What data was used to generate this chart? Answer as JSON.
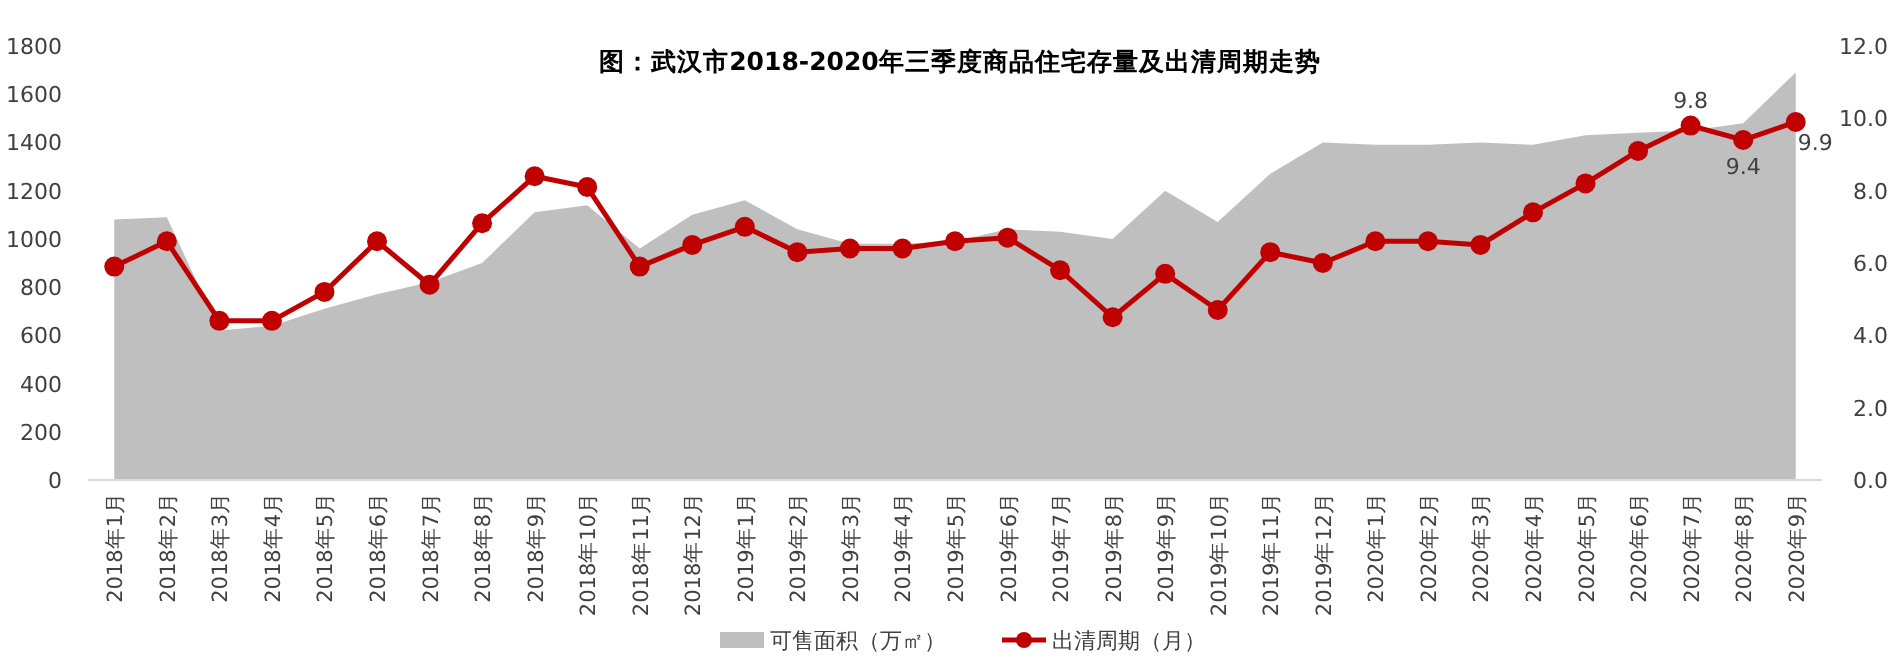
{
  "chart_data": {
    "type": "area",
    "title": "图：武汉市2018-2020年三季度商品住宅存量及出清周期走势",
    "categories": [
      "2018年1月",
      "2018年2月",
      "2018年3月",
      "2018年4月",
      "2018年5月",
      "2018年6月",
      "2018年7月",
      "2018年8月",
      "2018年9月",
      "2018年10月",
      "2018年11月",
      "2018年12月",
      "2019年1月",
      "2019年2月",
      "2019年3月",
      "2019年4月",
      "2019年5月",
      "2019年6月",
      "2019年7月",
      "2019年8月",
      "2019年9月",
      "2019年10月",
      "2019年11月",
      "2019年12月",
      "2020年1月",
      "2020年2月",
      "2020年3月",
      "2020年4月",
      "2020年5月",
      "2020年6月",
      "2020年7月",
      "2020年8月",
      "2020年9月"
    ],
    "series": [
      {
        "name": "可售面积（万㎡）",
        "color": "#bfbfbf",
        "values": [
          1080,
          1090,
          620,
          640,
          710,
          770,
          820,
          900,
          1110,
          1140,
          960,
          1100,
          1160,
          1040,
          980,
          980,
          990,
          1040,
          1030,
          1000,
          1200,
          1070,
          1270,
          1400,
          1390,
          1390,
          1400,
          1390,
          1430,
          1440,
          1450,
          1480,
          1690
        ]
      },
      {
        "name": "出清周期（月）",
        "type": "line",
        "axis": "y2",
        "color": "#c00000",
        "marker": "circle",
        "line_style": "solid",
        "values": [
          5.9,
          6.6,
          4.4,
          4.4,
          5.2,
          6.6,
          5.4,
          7.1,
          8.4,
          8.1,
          5.9,
          6.5,
          7.0,
          6.3,
          6.4,
          6.4,
          6.6,
          6.7,
          5.8,
          4.5,
          5.7,
          4.7,
          6.3,
          6.0,
          6.6,
          6.6,
          6.5,
          7.4,
          8.2,
          9.1,
          9.8,
          9.4,
          9.9
        ],
        "value_labels": [
          null,
          null,
          null,
          null,
          null,
          null,
          null,
          null,
          null,
          null,
          null,
          null,
          null,
          null,
          null,
          null,
          null,
          null,
          null,
          null,
          null,
          null,
          null,
          null,
          null,
          null,
          null,
          null,
          null,
          null,
          "9.8",
          "9.4",
          "9.9"
        ]
      }
    ],
    "ylim": [
      0,
      1800
    ],
    "yticks": [
      0,
      200,
      400,
      600,
      800,
      1000,
      1200,
      1400,
      1600,
      1800
    ],
    "y2lim": [
      0,
      12
    ],
    "y2ticks": [
      {
        "value": 0,
        "label": "0.0"
      },
      {
        "value": 2,
        "label": "2.0"
      },
      {
        "value": 4,
        "label": "4.0"
      },
      {
        "value": 6,
        "label": "6.0"
      },
      {
        "value": 8,
        "label": "8.0"
      },
      {
        "value": 10,
        "label": "10.0"
      },
      {
        "value": 12,
        "label": "12.0"
      }
    ],
    "legend": "bottom",
    "grid": false
  }
}
